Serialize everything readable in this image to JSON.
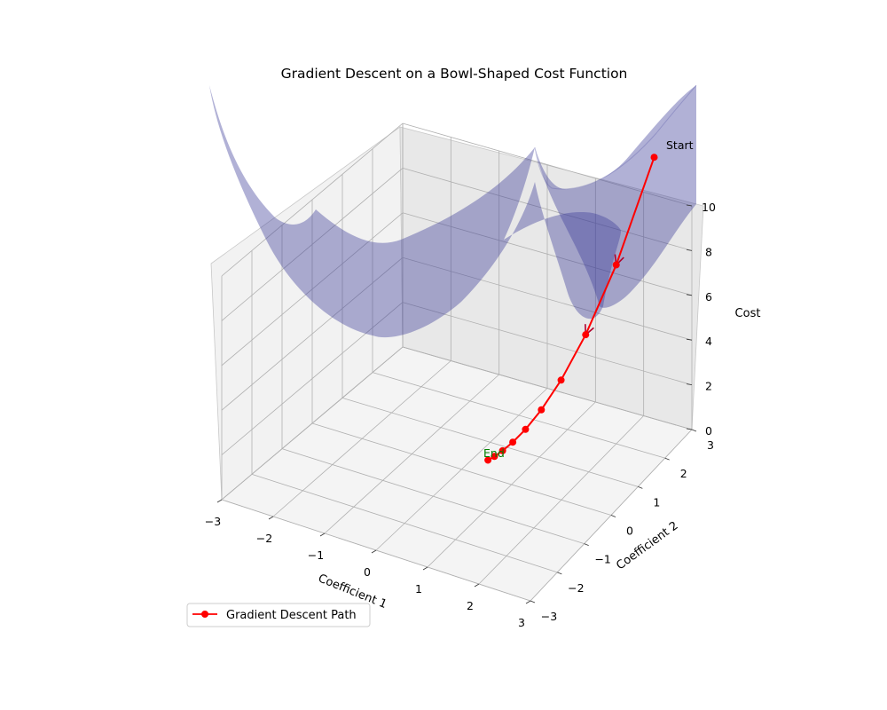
{
  "chart_data": {
    "type": "scatter",
    "title": "Gradient Descent on a Bowl-Shaped Cost Function",
    "xlabel": "Coefficient 1",
    "ylabel": "Coefficient 2",
    "zlabel": "Cost",
    "xlim": [
      -3,
      3
    ],
    "ylim": [
      -3,
      3
    ],
    "zlim": [
      0,
      10
    ],
    "x_ticks": [
      "−3",
      "−2",
      "−1",
      "0",
      "1",
      "2",
      "3"
    ],
    "y_ticks": [
      "−3",
      "−2",
      "−1",
      "0",
      "1",
      "2",
      "3"
    ],
    "z_ticks": [
      "0",
      "2",
      "4",
      "6",
      "8",
      "10"
    ],
    "grid": true,
    "legend_position": "lower-left",
    "surface": {
      "name": "cost surface",
      "function": "x^2 + y^2",
      "color": "#3b3b98"
    },
    "series": [
      {
        "name": "Gradient Descent Path",
        "color": "#ff0000",
        "x": [
          2.5,
          2.0,
          1.6,
          1.28,
          1.024,
          0.819,
          0.655,
          0.524,
          0.419,
          0.336
        ],
        "y": [
          2.5,
          2.0,
          1.6,
          1.28,
          1.024,
          0.819,
          0.655,
          0.524,
          0.419,
          0.336
        ],
        "z": [
          12.5,
          8.0,
          5.12,
          3.28,
          2.1,
          1.34,
          0.86,
          0.55,
          0.35,
          0.23
        ]
      }
    ],
    "annotations": [
      {
        "text": "Start",
        "color": "#000000"
      },
      {
        "text": "End",
        "color": "#008000"
      }
    ]
  }
}
